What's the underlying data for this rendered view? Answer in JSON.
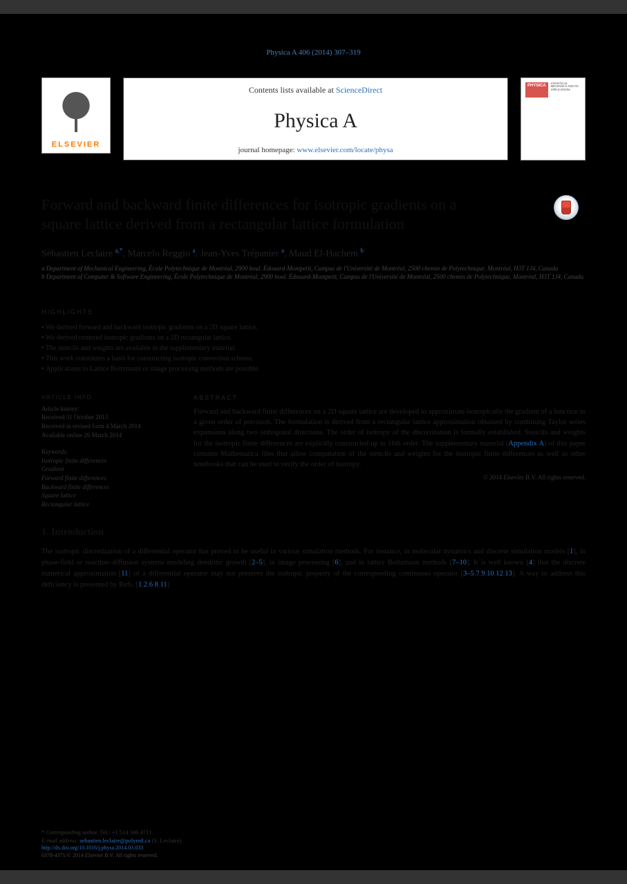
{
  "citation": "Physica A 406 (2014) 307–319",
  "header": {
    "contents_prefix": "Contents lists available at ",
    "contents_link": "ScienceDirect",
    "journal_name": "Physica A",
    "homepage_prefix": "journal homepage: ",
    "homepage_link": "www.elsevier.com/locate/physa",
    "elsevier_label": "ELSEVIER",
    "cover_badge": "PHYSICA",
    "cover_sub": "STATISTICAL MECHANICS AND ITS APPLICATIONS"
  },
  "paper": {
    "title": "Forward and backward finite differences for isotropic gradients on a square lattice derived from a rectangular lattice formulation",
    "authors_html": "Sébastien Leclaire <sup>a,*</sup>, Marcelo Reggio <sup>a</sup>, Jean-Yves Trépanier <sup>a</sup>, Maud El-Hachem <sup>b</sup>",
    "affil_a": "a Department of Mechanical Engineering, École Polytechnique de Montréal, 2900 boul. Édouard-Montpetit, Campus de l'Université de Montréal, 2500 chemin de Polytechnique, Montréal, H3T 1J4, Canada",
    "affil_b": "b Department of Computer & Software Engineering, École Polytechnique de Montréal, 2900 boul. Édouard-Montpetit, Campus de l'Université de Montréal, 2500 chemin de Polytechnique, Montréal, H3T 1J4, Canada"
  },
  "meta": {
    "history_label": "ARTICLE INFO",
    "history": "Article history:\nReceived 31 October 2013\nReceived in revised form 4 March 2014\nAvailable online 26 March 2014",
    "keywords_label": "Keywords:",
    "keywords": [
      "Isotropic finite differences",
      "Gradient",
      "Forward finite differences",
      "Backward finite differences",
      "Square lattice",
      "Rectangular lattice"
    ]
  },
  "highlights": {
    "label": "HIGHLIGHTS",
    "items": [
      "We derived forward and backward isotropic gradients on a 2D square lattice.",
      "We derived centered isotropic gradients on a 2D rectangular lattice.",
      "The stencils and weights are available in the supplementary material.",
      "This work constitutes a basis for constructing isotropic convection scheme.",
      "Applications to Lattice Boltzmann or image processing methods are possible."
    ]
  },
  "abstract": {
    "label": "ABSTRACT",
    "text": "Forward and backward finite differences on a 2D square lattice are developed to approximate isotropically the gradient of a function to a given order of precision. The formulation is derived from a rectangular lattice approximation obtained by combining Taylor series expansions along two orthogonal directions. The order of isotropy of the discretization is formally established. Stencils and weights for the isotropic finite differences are explicitly constructed up to 16th order. The supplementary material (",
    "link": "Appendix A",
    "text_after": ") of this paper contains Mathematica files that allow computation of the stencils and weights for the isotropic finite differences as well as other notebooks that can be used to verify the order of isotropy.",
    "copyright": "© 2014 Elsevier B.V. All rights reserved."
  },
  "section1": {
    "heading": "1. Introduction",
    "p1_pre": "The isotropic discretization of a differential operator has proved to be useful in various simulation methods. For instance, in molecular dynamics and discrete simulation models [",
    "r1": "1",
    "p1_a": "], in phase-field or reaction–diffusion systems modeling dendritic growth [",
    "r2": "2–5",
    "p1_b": "], in image processing [",
    "r3": "6",
    "p1_c": "], and in lattice Boltzmann methods [",
    "r4": "7–10",
    "p1_d": "]. It is well known [",
    "r5": "4",
    "p1_e": "] that the discrete numerical approximation [",
    "r6": "11",
    "p1_f": "] of a differential operator may not preserve the isotropic property of the corresponding continuous operator [",
    "r7": "3–5",
    "r8": "7",
    "r9": "9",
    "r10": "10",
    "r11": "12",
    "r12": "13",
    "p1_g": "]. A way to address this deficiency is presented by Refs. [",
    "r13": "1",
    "r14": "2",
    "r15": "6",
    "r16": "8",
    "r17": "11",
    "p1_end": "]"
  },
  "footnotes": {
    "corr": "* Corresponding author. Tel.: +1 514 340 4711.",
    "email_label": "E-mail address: ",
    "email": "sebastien.leclaire@polymtl.ca",
    "email_suffix": " (S. Leclaire)."
  },
  "footer": {
    "doi": "http://dx.doi.org/10.1016/j.physa.2014.03.033",
    "issn": "0378-4371/© 2014 Elsevier B.V. All rights reserved."
  },
  "colors": {
    "link": "#2a6ebb",
    "elsevier_orange": "#ff7a00",
    "physica_red": "#d9534f"
  }
}
